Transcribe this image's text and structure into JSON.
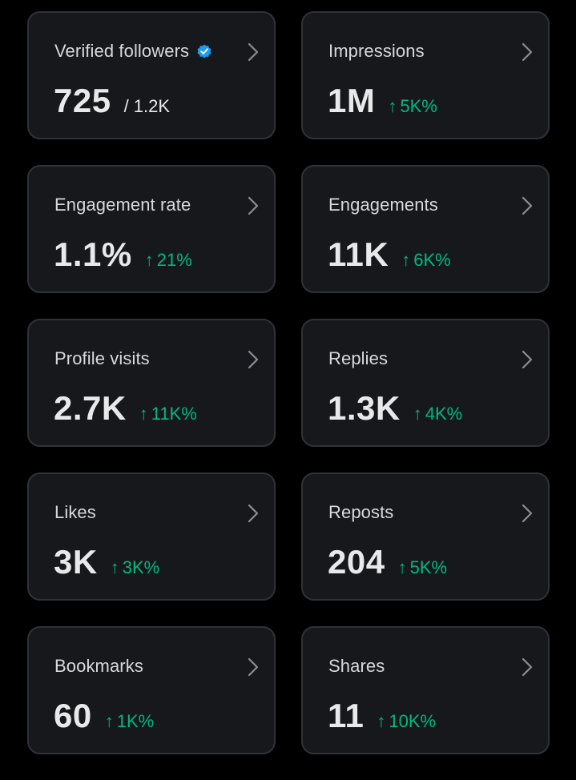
{
  "colors": {
    "background": "#000000",
    "card": "#16181c",
    "card_border": "#2f3336",
    "positive": "#00ba7c",
    "verified": "#1d9bf0"
  },
  "cards": [
    {
      "title": "Verified followers",
      "value": "725",
      "denominator": "/ 1.2K",
      "icon": "verified-badge-icon"
    },
    {
      "title": "Impressions",
      "value": "1M",
      "arrow": "↑",
      "change": "5K%"
    },
    {
      "title": "Engagement rate",
      "value": "1.1%",
      "arrow": "↑",
      "change": "21%"
    },
    {
      "title": "Engagements",
      "value": "11K",
      "arrow": "↑",
      "change": "6K%"
    },
    {
      "title": "Profile visits",
      "value": "2.7K",
      "arrow": "↑",
      "change": "11K%"
    },
    {
      "title": "Replies",
      "value": "1.3K",
      "arrow": "↑",
      "change": "4K%"
    },
    {
      "title": "Likes",
      "value": "3K",
      "arrow": "↑",
      "change": "3K%"
    },
    {
      "title": "Reposts",
      "value": "204",
      "arrow": "↑",
      "change": "5K%"
    },
    {
      "title": "Bookmarks",
      "value": "60",
      "arrow": "↑",
      "change": "1K%"
    },
    {
      "title": "Shares",
      "value": "11",
      "arrow": "↑",
      "change": "10K%"
    }
  ]
}
